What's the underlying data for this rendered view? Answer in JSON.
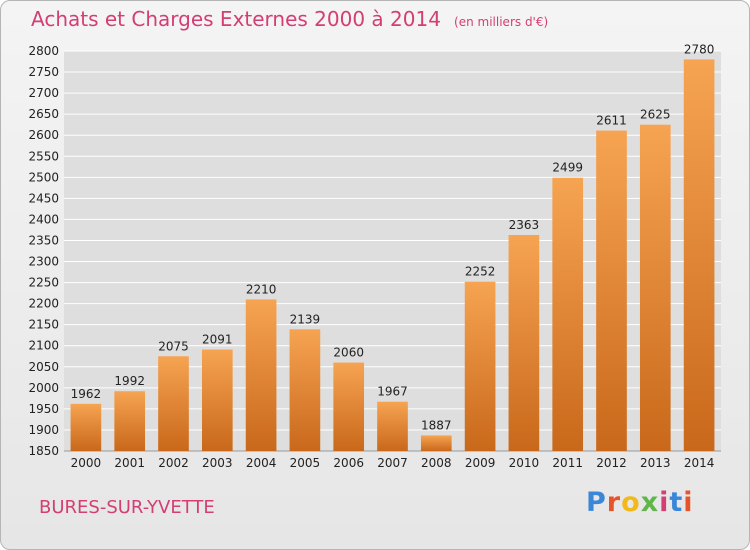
{
  "title": "Achats et Charges Externes 2000 à 2014",
  "unit_note": "(en milliers d'€)",
  "commune": "BURES-SUR-YVETTE",
  "logo": {
    "letters": [
      "P",
      "r",
      "o",
      "x",
      "i",
      "t",
      "i"
    ],
    "colors": [
      "#3a86d8",
      "#e8542a",
      "#f2b91b",
      "#5eb748",
      "#d33e73",
      "#3a86d8",
      "#e8542a"
    ]
  },
  "colors": {
    "title": "#d33e73",
    "bar_light": "#f6a452",
    "bar_dark": "#c9681a",
    "grid": "#ffffff"
  },
  "chart_data": {
    "type": "bar",
    "title": "Achats et Charges Externes 2000 à 2014",
    "xlabel": "",
    "ylabel": "",
    "categories": [
      "2000",
      "2001",
      "2002",
      "2003",
      "2004",
      "2005",
      "2006",
      "2007",
      "2008",
      "2009",
      "2010",
      "2011",
      "2012",
      "2013",
      "2014"
    ],
    "values": [
      1962,
      1992,
      2075,
      2091,
      2210,
      2139,
      2060,
      1967,
      1887,
      2252,
      2363,
      2499,
      2611,
      2625,
      2780
    ],
    "ylim": [
      1850,
      2800
    ],
    "yticks": [
      1850,
      1900,
      1950,
      2000,
      2050,
      2100,
      2150,
      2200,
      2250,
      2300,
      2350,
      2400,
      2450,
      2500,
      2550,
      2600,
      2650,
      2700,
      2750,
      2800
    ],
    "grid": true,
    "data_labels": true
  }
}
